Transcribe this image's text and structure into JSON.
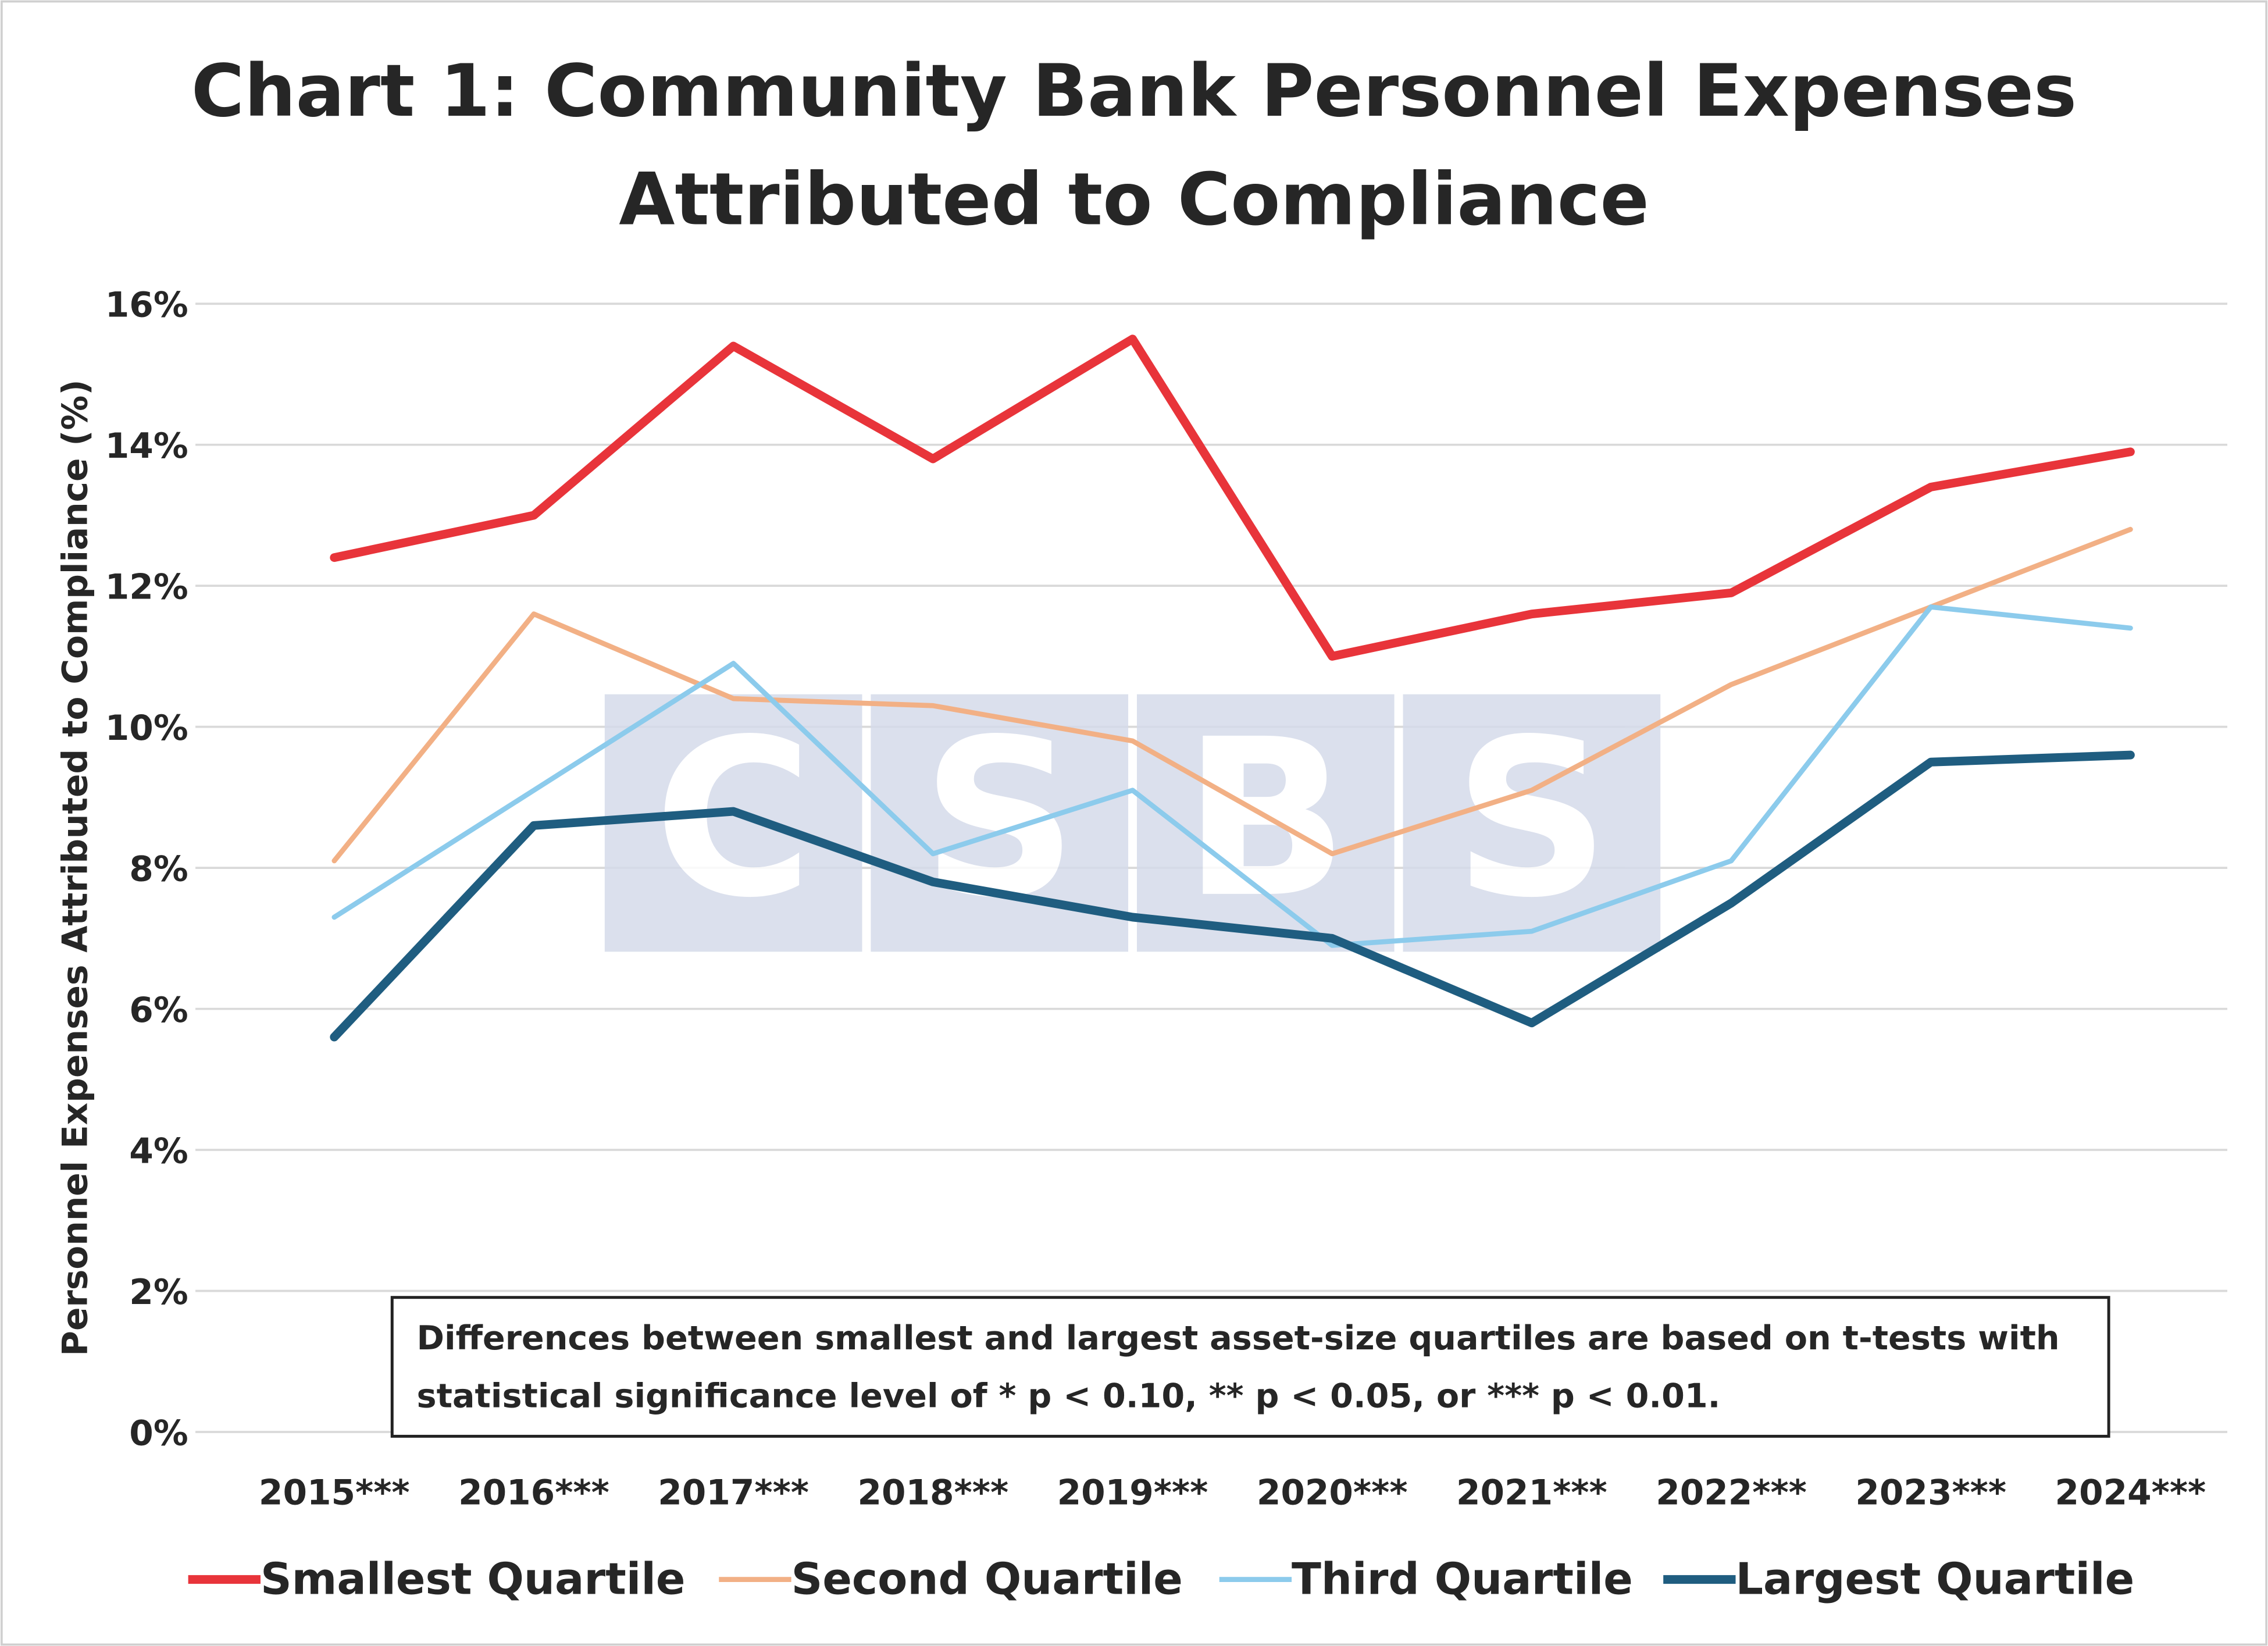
{
  "chart_data": {
    "type": "line",
    "title_line1": "Chart 1: Community Bank Personnel Expenses",
    "title_line2": "Attributed to Compliance",
    "xlabel": "",
    "ylabel": "Personnel Expenses Attributed to Compliance (%)",
    "ylim": [
      0,
      16
    ],
    "yticks": [
      "0%",
      "2%",
      "4%",
      "6%",
      "8%",
      "10%",
      "12%",
      "14%",
      "16%"
    ],
    "categories": [
      "2015***",
      "2016***",
      "2017***",
      "2018***",
      "2019***",
      "2020***",
      "2021***",
      "2022***",
      "2023***",
      "2024***"
    ],
    "grid": true,
    "legend_position": "bottom",
    "series": [
      {
        "name": "Smallest Quartile",
        "color": "#e8343a",
        "values": [
          12.4,
          13.0,
          15.4,
          13.8,
          15.5,
          11.0,
          11.6,
          11.9,
          13.4,
          13.9
        ]
      },
      {
        "name": "Second Quartile",
        "color": "#f2b085",
        "values": [
          8.1,
          11.6,
          10.4,
          10.3,
          9.8,
          8.2,
          9.1,
          10.6,
          11.7,
          12.8
        ]
      },
      {
        "name": "Third Quartile",
        "color": "#8ccbec",
        "values": [
          7.3,
          9.1,
          10.9,
          8.2,
          9.1,
          6.9,
          7.1,
          8.1,
          11.7,
          11.4
        ]
      },
      {
        "name": "Largest Quartile",
        "color": "#1f5d80",
        "values": [
          5.6,
          8.6,
          8.8,
          7.8,
          7.3,
          7.0,
          5.8,
          7.5,
          9.5,
          9.6
        ]
      }
    ],
    "annotation_line1": "Differences between smallest and largest asset-size quartiles are based on t-tests with",
    "annotation_line2": "statistical significance level of * p < 0.10, ** p < 0.05, or *** p < 0.01.",
    "watermark": "CSBS"
  }
}
